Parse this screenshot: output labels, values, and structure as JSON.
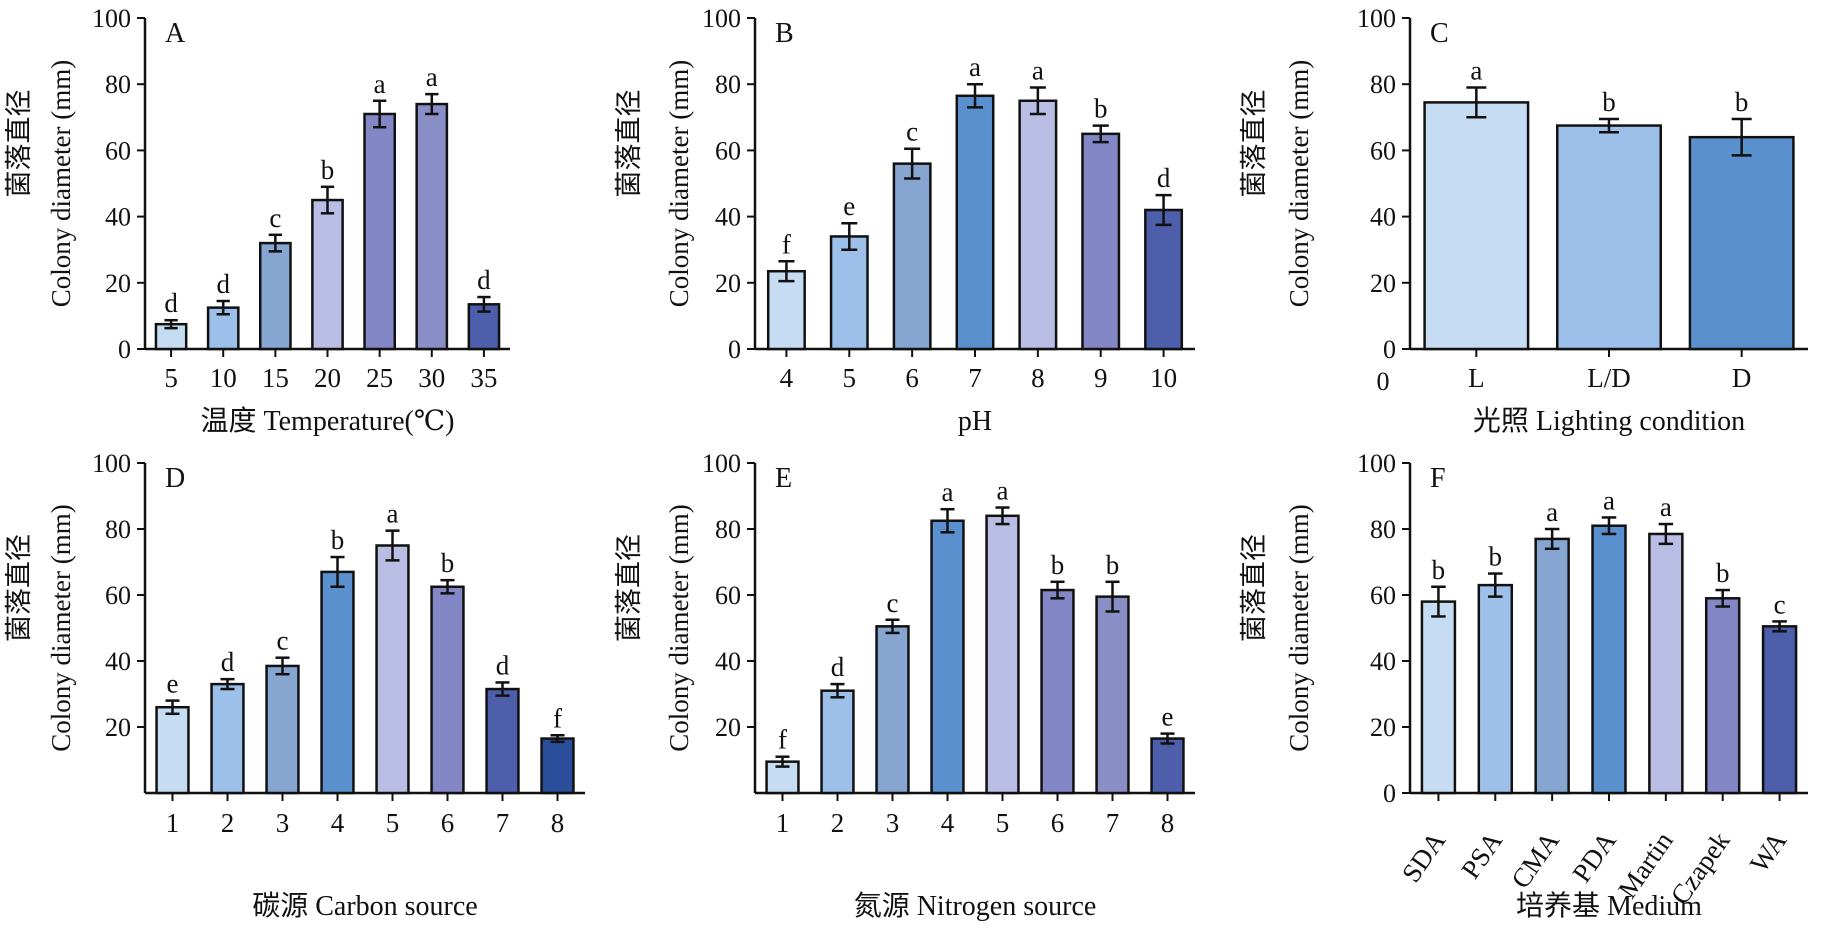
{
  "chart_data": [
    {
      "type": "bar",
      "panel": "A",
      "ylabel": "Colony diameter (mm)",
      "ylabel_cn": "菌落直径",
      "xlabel": "温度  Temperature(℃)",
      "ylim": [
        0,
        100
      ],
      "yticks": [
        "0",
        "20",
        "40",
        "60",
        "80",
        "100"
      ],
      "categories": [
        "5",
        "10",
        "15",
        "20",
        "25",
        "30",
        "35"
      ],
      "values": [
        7.5,
        12.5,
        32,
        45,
        71,
        74,
        13.5
      ],
      "errors": [
        1.2,
        2.0,
        2.5,
        4.0,
        4.0,
        3.0,
        2.2
      ],
      "letters": [
        "d",
        "d",
        "c",
        "b",
        "a",
        "a",
        "d"
      ],
      "colors": [
        "#c6dcf3",
        "#9dc0ea",
        "#86a5d0",
        "#babde4",
        "#8487c6",
        "#8a8ec6",
        "#4d5eaa"
      ]
    },
    {
      "type": "bar",
      "panel": "B",
      "ylabel": "Colony diameter (mm)",
      "ylabel_cn": "菌落直径",
      "xlabel": "pH",
      "ylim": [
        0,
        100
      ],
      "yticks": [
        "0",
        "20",
        "40",
        "60",
        "80",
        "100"
      ],
      "categories": [
        "4",
        "5",
        "6",
        "7",
        "8",
        "9",
        "10"
      ],
      "values": [
        23.5,
        34,
        56,
        76.5,
        75,
        65,
        42
      ],
      "errors": [
        3.0,
        4.0,
        4.5,
        3.5,
        4.0,
        2.5,
        4.5
      ],
      "letters": [
        "f",
        "e",
        "c",
        "a",
        "a",
        "b",
        "d"
      ],
      "colors": [
        "#c6dcf3",
        "#9dc0ea",
        "#86a5d0",
        "#5b90ce",
        "#babde4",
        "#8487c6",
        "#4d5eaa"
      ]
    },
    {
      "type": "bar",
      "panel": "C",
      "ylabel": "Colony diameter (mm)",
      "ylabel_cn": "菌落直径",
      "xlabel": "光照  Lighting condition",
      "ylim": [
        0,
        100
      ],
      "yticks": [
        "0",
        "20",
        "40",
        "60",
        "80",
        "100"
      ],
      "categories": [
        "L",
        "L/D",
        "D"
      ],
      "values": [
        74.5,
        67.5,
        64
      ],
      "errors": [
        4.5,
        2.0,
        5.5
      ],
      "letters": [
        "a",
        "b",
        "b"
      ],
      "colors": [
        "#c6dcf3",
        "#9dc0ea",
        "#5b90ce"
      ]
    },
    {
      "type": "bar",
      "panel": "D",
      "ylabel": "Colony diameter (mm)",
      "ylabel_cn": "菌落直径",
      "xlabel": "碳源  Carbon source",
      "ylim": [
        0,
        100
      ],
      "yticks": [
        "20",
        "40",
        "60",
        "80",
        "100"
      ],
      "categories": [
        "1",
        "2",
        "3",
        "4",
        "5",
        "6",
        "7",
        "8"
      ],
      "values": [
        26,
        33,
        38.5,
        67,
        75,
        62.5,
        31.5,
        16.5
      ],
      "errors": [
        2.0,
        1.5,
        2.5,
        4.5,
        4.5,
        2.0,
        2.0,
        1.0
      ],
      "letters": [
        "e",
        "d",
        "c",
        "b",
        "a",
        "b",
        "d",
        "f"
      ],
      "colors": [
        "#c6dcf3",
        "#9dc0ea",
        "#86a5d0",
        "#5b90ce",
        "#babde4",
        "#8487c6",
        "#4d5eaa",
        "#2a4e9a"
      ]
    },
    {
      "type": "bar",
      "panel": "E",
      "ylabel": "Colony diameter (mm)",
      "ylabel_cn": "菌落直径",
      "xlabel": "氮源  Nitrogen source",
      "ylim": [
        0,
        100
      ],
      "yticks": [
        "20",
        "40",
        "60",
        "80",
        "100"
      ],
      "categories": [
        "1",
        "2",
        "3",
        "4",
        "5",
        "6",
        "7",
        "8"
      ],
      "values": [
        9.5,
        31,
        50.5,
        82.5,
        84,
        61.5,
        59.5,
        16.5
      ],
      "errors": [
        1.5,
        2.0,
        2.0,
        3.5,
        2.5,
        2.5,
        4.5,
        1.5
      ],
      "letters": [
        "f",
        "d",
        "c",
        "a",
        "a",
        "b",
        "b",
        "e"
      ],
      "colors": [
        "#c6dcf3",
        "#9dc0ea",
        "#86a5d0",
        "#5b90ce",
        "#babde4",
        "#8487c6",
        "#8a8ec6",
        "#4d5eaa"
      ]
    },
    {
      "type": "bar",
      "panel": "F",
      "ylabel": "Colony diameter (mm)",
      "ylabel_cn": "菌落直径",
      "xlabel": "培养基  Medium",
      "ylim": [
        0,
        100
      ],
      "yticks": [
        "0",
        "20",
        "40",
        "60",
        "80",
        "100"
      ],
      "categories": [
        "SDA",
        "PSA",
        "CMA",
        "PDA",
        "Martin",
        "Czapek",
        "WA"
      ],
      "values": [
        58,
        63,
        77,
        81,
        78.5,
        59,
        50.5
      ],
      "errors": [
        4.5,
        3.5,
        3.0,
        2.5,
        3.0,
        2.5,
        1.5
      ],
      "letters": [
        "b",
        "b",
        "a",
        "a",
        "a",
        "b",
        "c"
      ],
      "colors": [
        "#c6dcf3",
        "#9dc0ea",
        "#86a5d0",
        "#5b90ce",
        "#babde4",
        "#8487c6",
        "#4d5eaa"
      ]
    }
  ],
  "extra_labels": {
    "panel_c_origin": "0"
  }
}
